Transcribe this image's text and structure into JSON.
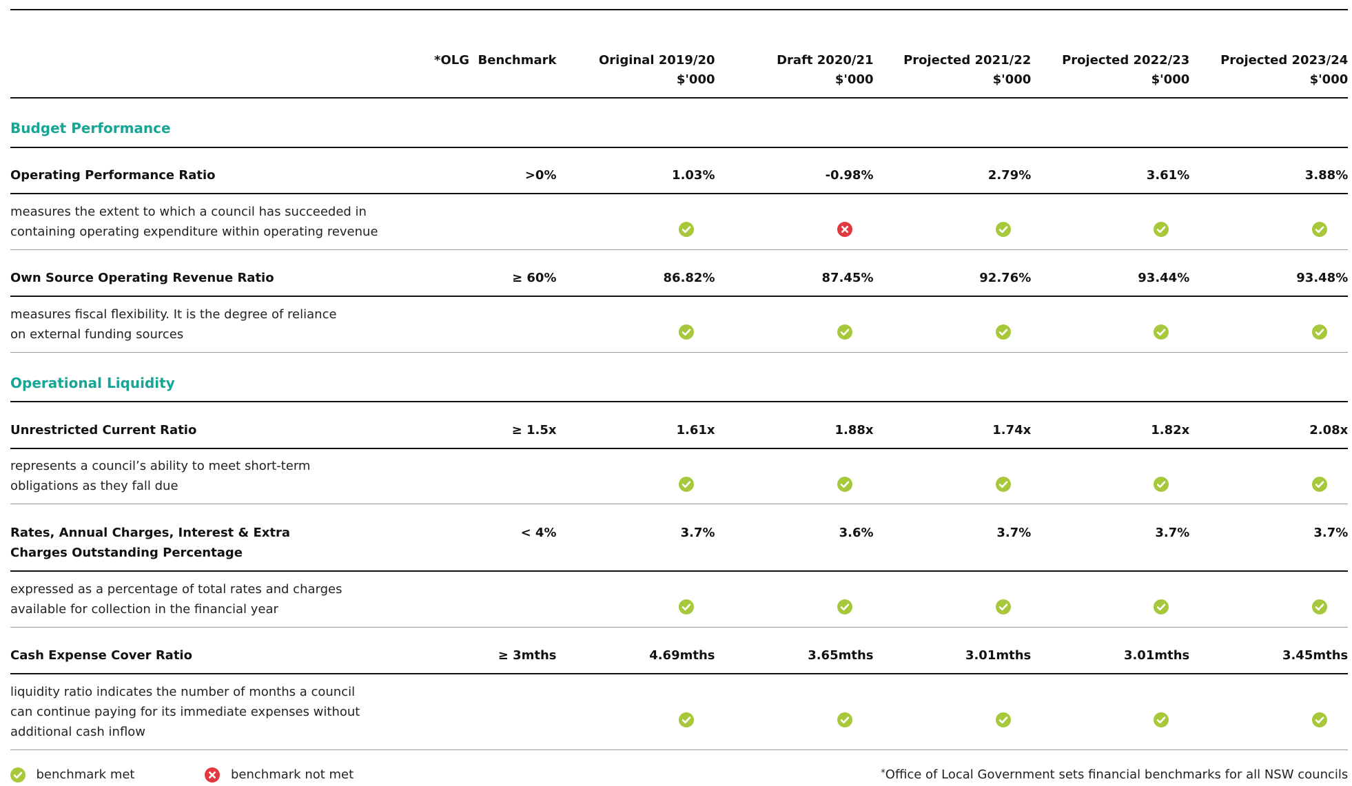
{
  "header": {
    "columns": [
      {
        "lines": [
          "*OLG  Benchmark"
        ]
      },
      {
        "lines": [
          "Original 2019/20",
          "$'000"
        ]
      },
      {
        "lines": [
          "Draft 2020/21",
          "$'000"
        ]
      },
      {
        "lines": [
          "Projected 2021/22",
          "$'000"
        ]
      },
      {
        "lines": [
          "Projected 2022/23",
          "$'000"
        ]
      },
      {
        "lines": [
          "Projected 2023/24",
          "$'000"
        ]
      }
    ]
  },
  "sections": [
    {
      "title": "Budget Performance",
      "rows": [
        {
          "name": [
            "Operating Performance Ratio"
          ],
          "benchmark": ">0%",
          "values": [
            "1.03%",
            "-0.98%",
            "2.79%",
            "3.61%",
            "3.88%"
          ],
          "description": [
            "measures the extent to which a council has succeeded in",
            "containing operating expenditure within operating revenue"
          ],
          "status": [
            "benchmark met",
            "benchmark not met",
            "benchmark met",
            "benchmark met",
            "benchmark met"
          ]
        },
        {
          "name": [
            "Own Source Operating Revenue Ratio"
          ],
          "benchmark": "≥ 60%",
          "values": [
            "86.82%",
            "87.45%",
            "92.76%",
            "93.44%",
            "93.48%"
          ],
          "description": [
            "measures fiscal flexibility. It is the degree of reliance",
            "on external funding sources"
          ],
          "status": [
            "benchmark met",
            "benchmark met",
            "benchmark met",
            "benchmark met",
            "benchmark met"
          ]
        }
      ]
    },
    {
      "title": "Operational Liquidity",
      "rows": [
        {
          "name": [
            "Unrestricted Current Ratio"
          ],
          "benchmark": "≥ 1.5x",
          "values": [
            "1.61x",
            "1.88x",
            "1.74x",
            "1.82x",
            "2.08x"
          ],
          "description": [
            "represents a council’s ability to meet short-term",
            "obligations as they fall due"
          ],
          "status": [
            "benchmark met",
            "benchmark met",
            "benchmark met",
            "benchmark met",
            "benchmark met"
          ]
        },
        {
          "name": [
            "Rates, Annual Charges, Interest & Extra",
            "Charges Outstanding Percentage"
          ],
          "benchmark": "< 4%",
          "values": [
            "3.7%",
            "3.6%",
            "3.7%",
            "3.7%",
            "3.7%"
          ],
          "description": [
            "expressed as a percentage of total rates and charges",
            "available for collection in the financial year"
          ],
          "status": [
            "benchmark met",
            "benchmark met",
            "benchmark met",
            "benchmark met",
            "benchmark met"
          ]
        },
        {
          "name": [
            "Cash Expense Cover Ratio"
          ],
          "benchmark": "≥ 3mths",
          "values": [
            "4.69mths",
            "3.65mths",
            "3.01mths",
            "3.01mths",
            "3.45mths"
          ],
          "description": [
            "liquidity ratio indicates the number of months a council",
            "can continue paying for its immediate expenses without",
            "additional cash inflow"
          ],
          "status": [
            "benchmark met",
            "benchmark met",
            "benchmark met",
            "benchmark met",
            "benchmark met"
          ]
        }
      ]
    }
  ],
  "legend": {
    "met": "benchmark met",
    "not_met": "benchmark not met"
  },
  "footnote": {
    "mark": "*",
    "text": "Office of Local Government sets financial benchmarks for all NSW councils"
  }
}
